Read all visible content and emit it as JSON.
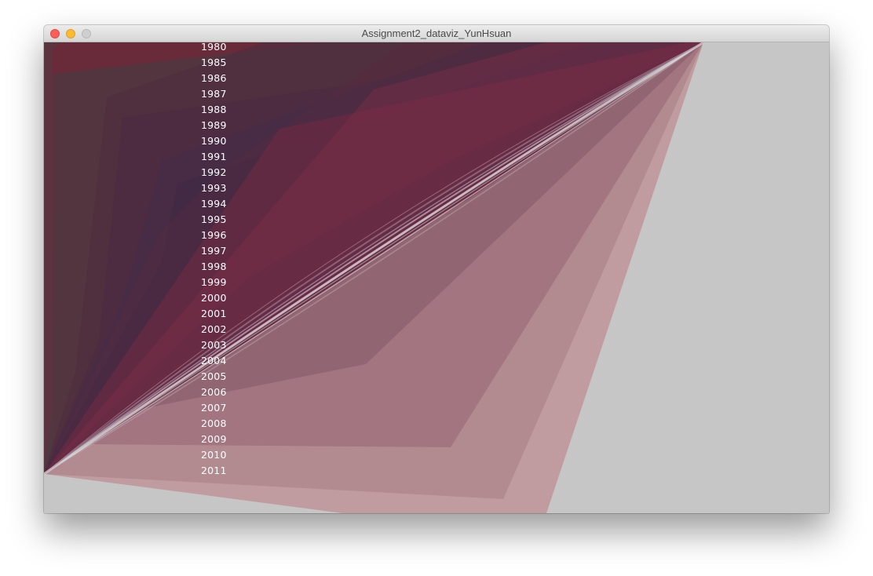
{
  "window": {
    "title": "Assignment2_dataviz_YunHsuan"
  },
  "visualization": {
    "years": [
      "1980",
      "1985",
      "1986",
      "1987",
      "1988",
      "1989",
      "1990",
      "1991",
      "1992",
      "1993",
      "1994",
      "1995",
      "1996",
      "1997",
      "1998",
      "1999",
      "2000",
      "2001",
      "2002",
      "2003",
      "2004",
      "2005",
      "2006",
      "2007",
      "2008",
      "2009",
      "2010",
      "2011"
    ],
    "background_color": "#c6c6c6",
    "label_color": "#ffffff"
  }
}
